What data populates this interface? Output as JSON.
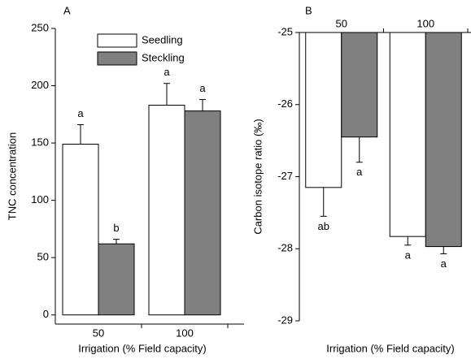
{
  "chart_data": [
    {
      "type": "bar",
      "panel_label": "A",
      "x_label": "Irrigation (% Field capacity)",
      "y_label": "TNC concentration",
      "categories": [
        "50",
        "100"
      ],
      "series": [
        {
          "name": "Seedling",
          "color": "#ffffff",
          "values": [
            149,
            183
          ],
          "errors": [
            17,
            19
          ],
          "value_labels": [
            "a",
            "a"
          ]
        },
        {
          "name": "Steckling",
          "color": "#808080",
          "values": [
            62,
            178
          ],
          "errors": [
            4,
            10
          ],
          "value_labels": [
            "b",
            "a"
          ]
        }
      ],
      "ylim": [
        -8,
        250
      ],
      "yticks": [
        0,
        50,
        100,
        150,
        200,
        250
      ],
      "x_axis_position": "bottom",
      "legend": "top"
    },
    {
      "type": "bar",
      "panel_label": "B",
      "x_label": "Irrigation (% Field capacity)",
      "y_label": "Carbon isotope ratio (‰)",
      "categories": [
        "50",
        "100"
      ],
      "series": [
        {
          "color": "#ffffff",
          "values": [
            -27.15,
            -27.83
          ],
          "errors": [
            0.4,
            0.12
          ],
          "value_labels": [
            "ab",
            "a"
          ]
        },
        {
          "color": "#808080",
          "values": [
            -26.45,
            -27.97
          ],
          "errors": [
            0.35,
            0.1
          ],
          "value_labels": [
            "a",
            "a"
          ]
        }
      ],
      "ylim": [
        -29,
        -25
      ],
      "yticks": [
        -25,
        -26,
        -27,
        -28,
        -29
      ],
      "x_axis_position": "top"
    }
  ]
}
